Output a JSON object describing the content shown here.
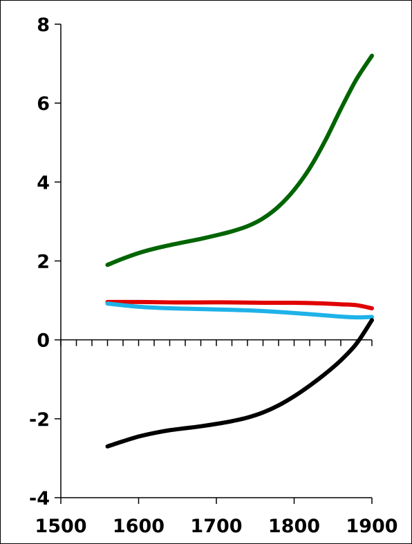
{
  "chart_data": {
    "type": "line",
    "title": "",
    "xlabel": "",
    "ylabel": "",
    "xlim": [
      1500,
      1900
    ],
    "ylim": [
      -4,
      8
    ],
    "x_ticks": [
      "1500",
      "1600",
      "1700",
      "1800",
      "1900"
    ],
    "y_ticks": [
      "8",
      "6",
      "4",
      "2",
      "0",
      "-2",
      "-4"
    ],
    "x_minor_step": 20,
    "grid": false,
    "legend": "none",
    "series": [
      {
        "color": "#006400",
        "points": [
          [
            1560,
            1.9
          ],
          [
            1580,
            2.06
          ],
          [
            1600,
            2.2
          ],
          [
            1620,
            2.31
          ],
          [
            1640,
            2.4
          ],
          [
            1660,
            2.48
          ],
          [
            1680,
            2.56
          ],
          [
            1700,
            2.65
          ],
          [
            1720,
            2.75
          ],
          [
            1740,
            2.88
          ],
          [
            1760,
            3.08
          ],
          [
            1780,
            3.38
          ],
          [
            1800,
            3.8
          ],
          [
            1820,
            4.35
          ],
          [
            1840,
            5.05
          ],
          [
            1860,
            5.85
          ],
          [
            1880,
            6.6
          ],
          [
            1900,
            7.2
          ]
        ]
      },
      {
        "color": "#e00000",
        "points": [
          [
            1560,
            0.96
          ],
          [
            1600,
            0.96
          ],
          [
            1640,
            0.95
          ],
          [
            1680,
            0.95
          ],
          [
            1720,
            0.95
          ],
          [
            1760,
            0.94
          ],
          [
            1800,
            0.94
          ],
          [
            1840,
            0.92
          ],
          [
            1860,
            0.9
          ],
          [
            1880,
            0.88
          ],
          [
            1900,
            0.8
          ]
        ]
      },
      {
        "color": "#1fb2e8",
        "points": [
          [
            1560,
            0.92
          ],
          [
            1600,
            0.84
          ],
          [
            1640,
            0.8
          ],
          [
            1680,
            0.78
          ],
          [
            1720,
            0.76
          ],
          [
            1760,
            0.73
          ],
          [
            1800,
            0.68
          ],
          [
            1840,
            0.62
          ],
          [
            1860,
            0.59
          ],
          [
            1880,
            0.57
          ],
          [
            1900,
            0.58
          ]
        ]
      },
      {
        "color": "#000000",
        "points": [
          [
            1560,
            -2.7
          ],
          [
            1580,
            -2.57
          ],
          [
            1600,
            -2.45
          ],
          [
            1620,
            -2.36
          ],
          [
            1640,
            -2.29
          ],
          [
            1660,
            -2.24
          ],
          [
            1680,
            -2.19
          ],
          [
            1700,
            -2.13
          ],
          [
            1720,
            -2.06
          ],
          [
            1740,
            -1.97
          ],
          [
            1760,
            -1.84
          ],
          [
            1780,
            -1.66
          ],
          [
            1800,
            -1.43
          ],
          [
            1820,
            -1.16
          ],
          [
            1840,
            -0.86
          ],
          [
            1860,
            -0.52
          ],
          [
            1880,
            -0.1
          ],
          [
            1900,
            0.5
          ]
        ]
      }
    ]
  }
}
